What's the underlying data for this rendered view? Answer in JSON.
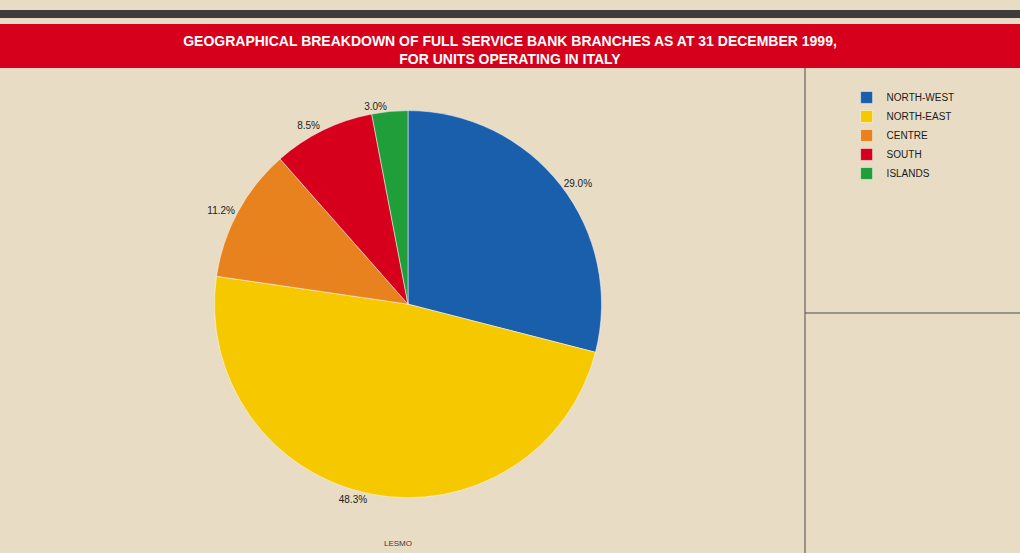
{
  "chart_data": {
    "type": "pie",
    "title": "GEOGRAPHICAL BREAKDOWN OF FULL SERVICE BANK BRANCHES AS AT 31 DECEMBER 1999, FOR UNITS OPERATING IN ITALY",
    "categories": [
      "NORTH-WEST",
      "NORTH-EAST",
      "CENTRE",
      "SOUTH",
      "ISLANDS"
    ],
    "values": [
      29.0,
      48.3,
      11.2,
      8.5,
      3.0
    ],
    "value_labels": [
      "29.0%",
      "48.3%",
      "11.2%",
      "8.5%",
      "3.0%"
    ],
    "colors": [
      "#1a5fac",
      "#f5c800",
      "#e8821e",
      "#d6001c",
      "#1f9e3a"
    ],
    "data_labels": true,
    "legend": "right",
    "annotations": [
      "LESMO"
    ]
  }
}
